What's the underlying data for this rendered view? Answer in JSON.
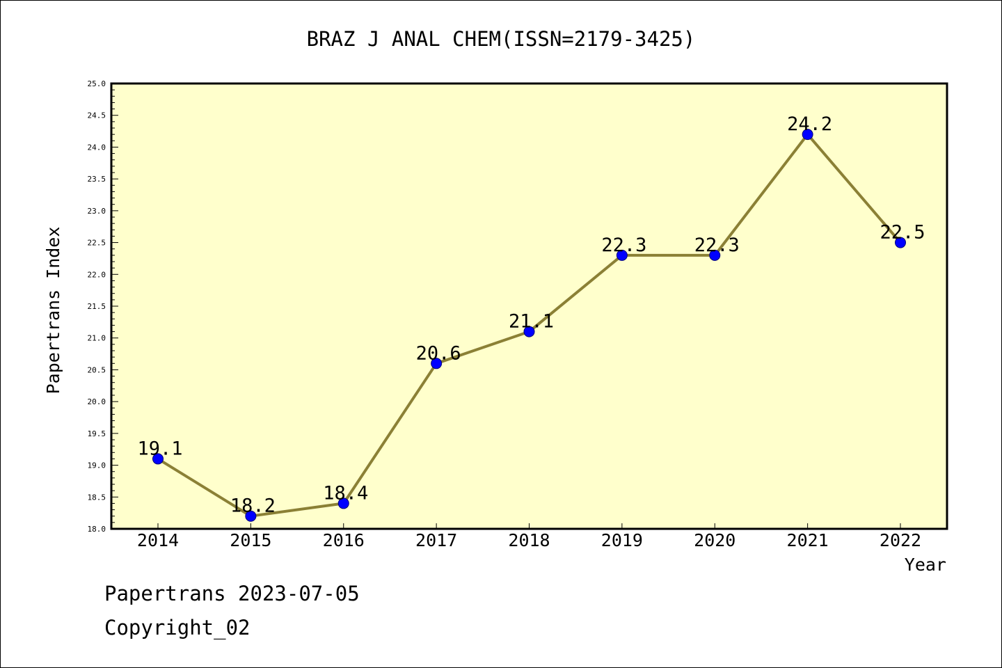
{
  "chart_data": {
    "type": "line",
    "title": "BRAZ J ANAL CHEM(ISSN=2179-3425)",
    "xlabel": "Year",
    "ylabel": "Papertrans Index",
    "categories": [
      "2014",
      "2015",
      "2016",
      "2017",
      "2018",
      "2019",
      "2020",
      "2021",
      "2022"
    ],
    "values": [
      19.1,
      18.2,
      18.4,
      20.6,
      21.1,
      22.3,
      22.3,
      24.2,
      22.5
    ],
    "data_labels": [
      "19.1",
      "18.2",
      "18.4",
      "20.6",
      "21.1",
      "22.3",
      "22.3",
      "24.2",
      "22.5"
    ],
    "ylim": [
      18.0,
      25.0
    ],
    "yticks": [
      "18.0",
      "18.5",
      "19.0",
      "19.5",
      "20.0",
      "20.5",
      "21.0",
      "21.5",
      "22.0",
      "22.5",
      "23.0",
      "23.5",
      "24.0",
      "24.5",
      "25.0"
    ],
    "grid": false,
    "colors": {
      "plot_background": "#ffffcc",
      "line": "#8b8035",
      "marker": "#0000ff",
      "axis": "#000000"
    }
  },
  "footer": {
    "date_line": "Papertrans 2023-07-05",
    "copyright_line": "Copyright_02"
  }
}
